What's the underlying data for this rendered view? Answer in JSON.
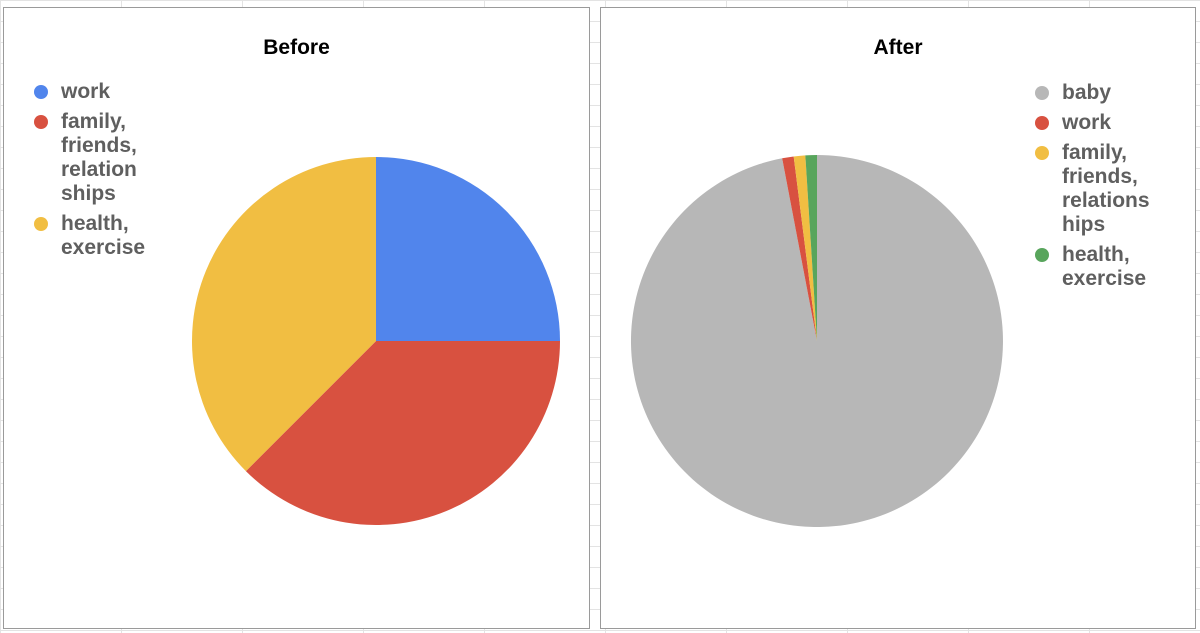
{
  "chart_data": [
    {
      "type": "pie",
      "title": "Before",
      "legend_position": "top-left",
      "slices": [
        {
          "label": "work",
          "legend_text": "work",
          "value": 25,
          "color": "#5185ec"
        },
        {
          "label": "family, friends, relationships",
          "legend_text": "family,\nfriends,\nrelation\nships",
          "value": 37.5,
          "color": "#d85140"
        },
        {
          "label": "health, exercise",
          "legend_text": "health,\nexercise",
          "value": 37.5,
          "color": "#f1be42"
        }
      ]
    },
    {
      "type": "pie",
      "title": "After",
      "legend_position": "top-right",
      "slices": [
        {
          "label": "baby",
          "legend_text": "baby",
          "value": 97,
          "color": "#b7b7b7"
        },
        {
          "label": "work",
          "legend_text": "work",
          "value": 1,
          "color": "#d85140"
        },
        {
          "label": "family, friends, relationships",
          "legend_text": "family,\nfriends,\nrelations\nhips",
          "value": 1,
          "color": "#f1be42"
        },
        {
          "label": "health, exercise",
          "legend_text": "health,\nexercise",
          "value": 1,
          "color": "#58a55c"
        }
      ]
    }
  ]
}
